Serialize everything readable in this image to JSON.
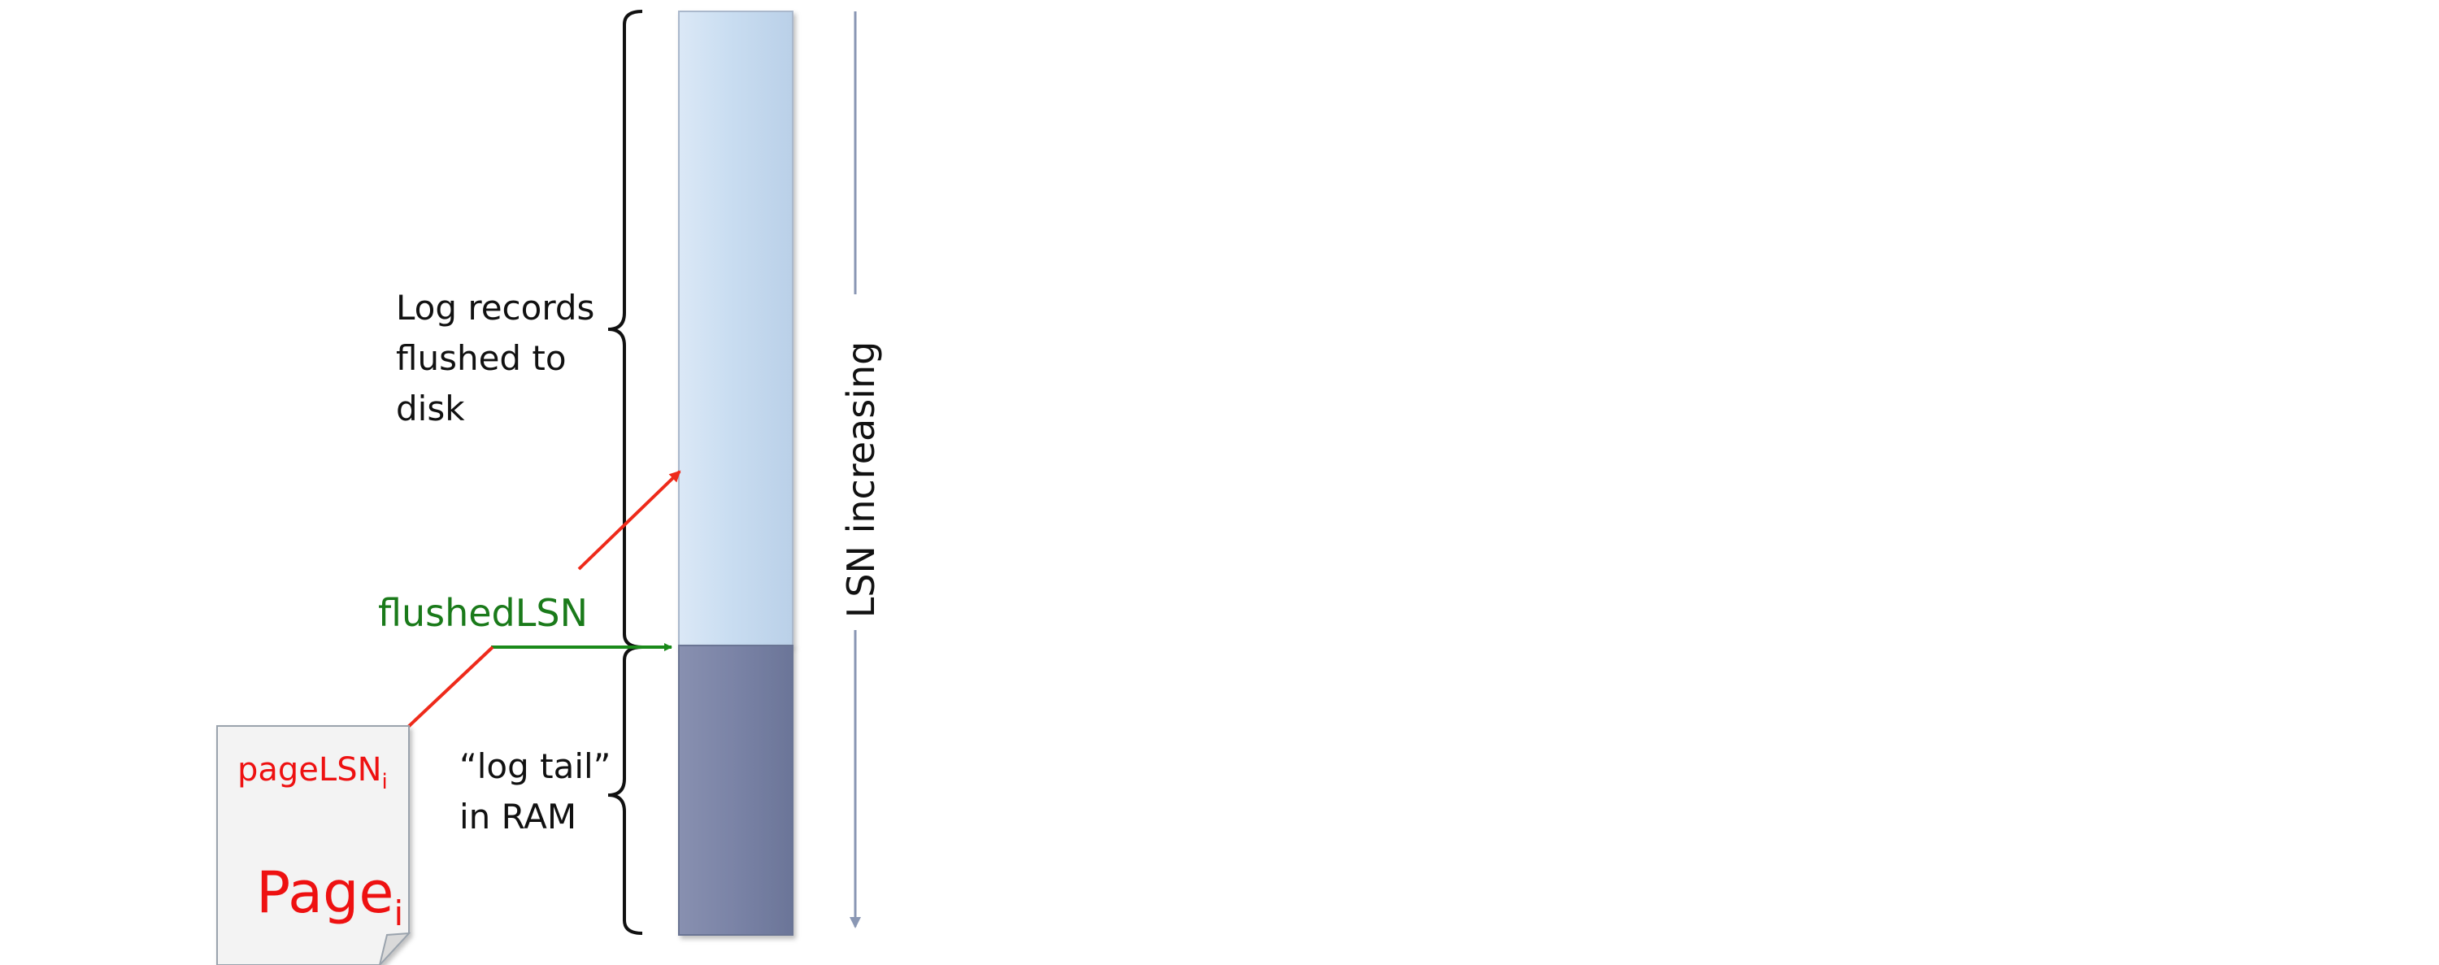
{
  "labels": {
    "flushed_line1": "Log records",
    "flushed_line2": "flushed to",
    "flushed_line3": "disk",
    "tail_line1": "“log tail”",
    "tail_line2": "in RAM",
    "flushed_lsn": "flushedLSN",
    "lsn_increasing": "LSN increasing",
    "page_lsn": "pageLSN",
    "page_lsn_sub": "i",
    "page": "Page",
    "page_sub": "i"
  },
  "colors": {
    "disk_log": "#c9ddf1",
    "ram_log": "#7a83a6",
    "flushed_lsn_text": "#1a7a1a",
    "flushed_lsn_arrow": "#1a8a1a",
    "page_text": "#ee1111",
    "pointer_arrow": "#ee2a1a",
    "lsn_axis": "#8a97b4",
    "page_fill": "#f3f3f3",
    "text": "#111111"
  }
}
